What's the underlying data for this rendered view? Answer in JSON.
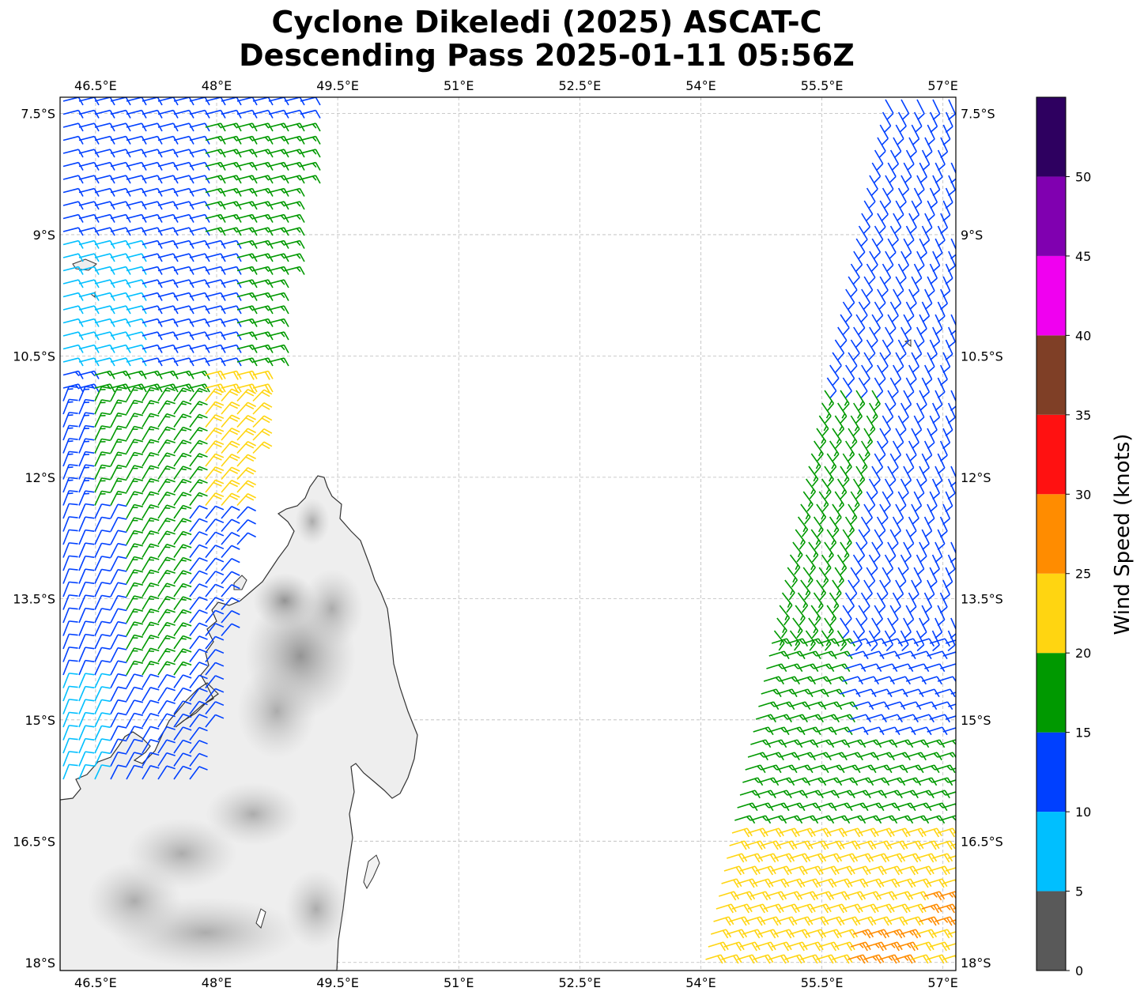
{
  "title": {
    "line1": "Cyclone Dikeledi (2025) ASCAT-C",
    "line2": "Descending Pass 2025-01-11 05:56Z"
  },
  "map": {
    "lon_range": [
      46.06,
      57.16
    ],
    "lat_range": [
      -18.1,
      -7.3
    ],
    "lon_ticks": [
      "46.5°E",
      "48°E",
      "49.5°E",
      "51°E",
      "52.5°E",
      "54°E",
      "55.5°E",
      "57°E"
    ],
    "lat_ticks": [
      "7.5°S",
      "9°S",
      "10.5°S",
      "12°S",
      "13.5°S",
      "15°S",
      "16.5°S",
      "18°S"
    ],
    "gridlines": true,
    "land": "Madagascar (grayscale terrain)",
    "swaths": [
      "west",
      "east"
    ]
  },
  "colorbar": {
    "label": "Wind Speed (knots)",
    "tick_labels": [
      "0",
      "5",
      "10",
      "15",
      "20",
      "25",
      "30",
      "35",
      "40",
      "45",
      "50"
    ],
    "bins": [
      {
        "from": 0,
        "to": 5,
        "color": "#595959"
      },
      {
        "from": 5,
        "to": 10,
        "color": "#00bfff"
      },
      {
        "from": 10,
        "to": 15,
        "color": "#0040ff"
      },
      {
        "from": 15,
        "to": 20,
        "color": "#009900"
      },
      {
        "from": 20,
        "to": 25,
        "color": "#ffd511"
      },
      {
        "from": 25,
        "to": 30,
        "color": "#ff8c00"
      },
      {
        "from": 30,
        "to": 35,
        "color": "#ff1111"
      },
      {
        "from": 35,
        "to": 40,
        "color": "#7f3f26"
      },
      {
        "from": 40,
        "to": 45,
        "color": "#f000f0"
      },
      {
        "from": 45,
        "to": 50,
        "color": "#8000b0"
      },
      {
        "from": 50,
        "to": 55,
        "color": "#2e0060"
      }
    ]
  }
}
